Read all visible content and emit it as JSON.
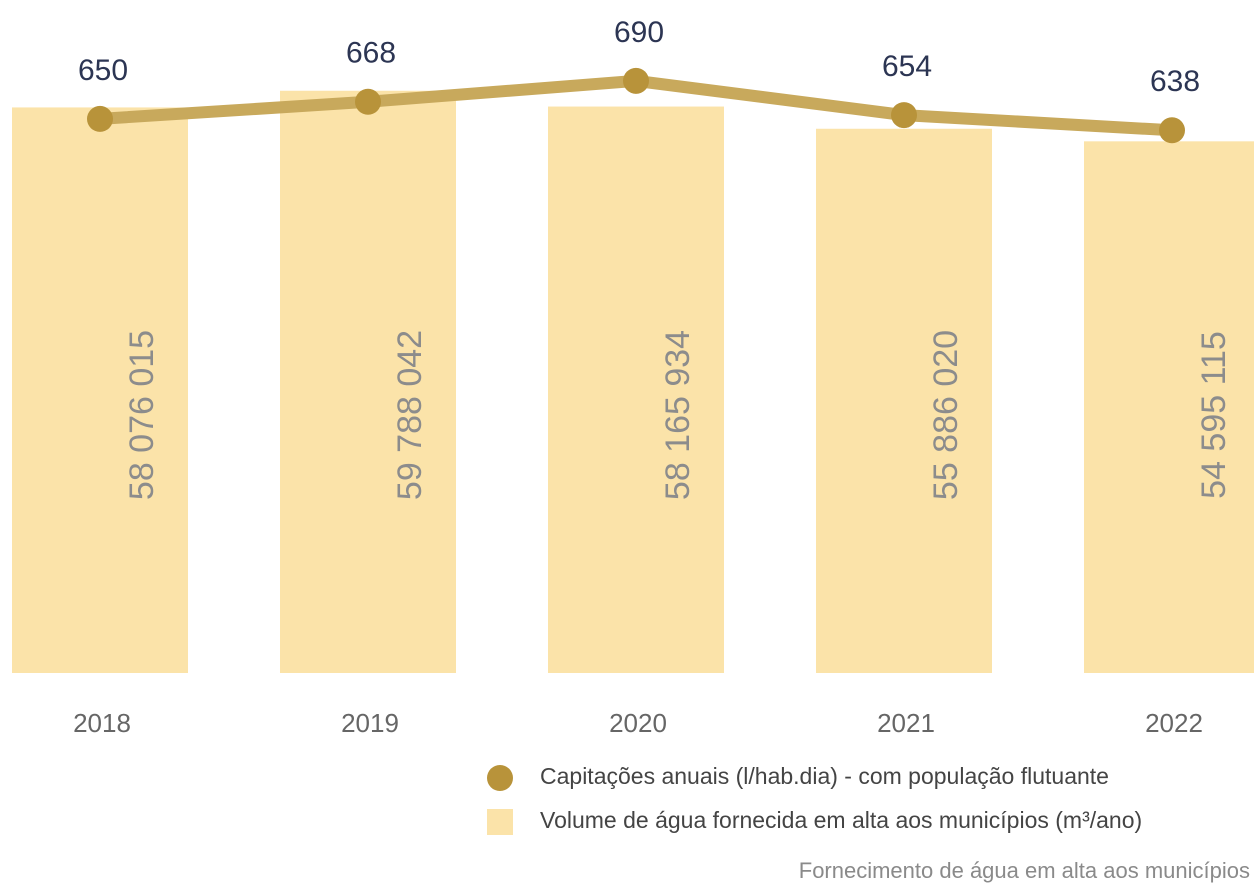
{
  "chart_data": {
    "type": "bar",
    "caption": "Fornecimento de água em alta aos municípios",
    "categories": [
      "2018",
      "2019",
      "2020",
      "2021",
      "2022"
    ],
    "series": [
      {
        "name": "Volume de água fornecida em alta aos municípios (m³/ano)",
        "type": "bar",
        "color": "#fbe3a9",
        "values": [
          58076015,
          59788042,
          58165934,
          55886020,
          54595115
        ],
        "value_labels": [
          "58 076 015",
          "59 788 042",
          "58 165 934",
          "55 886 020",
          "54 595 115"
        ]
      },
      {
        "name": "Capitações anuais (l/hab.dia) - com população flutuante",
        "type": "line",
        "axis": "y2",
        "color": "#c8a95c",
        "marker_color": "#b8933a",
        "values": [
          650,
          668,
          690,
          654,
          638
        ]
      }
    ],
    "ylim": [
      0,
      65000000
    ],
    "y2lim": [
      67,
      733
    ]
  }
}
